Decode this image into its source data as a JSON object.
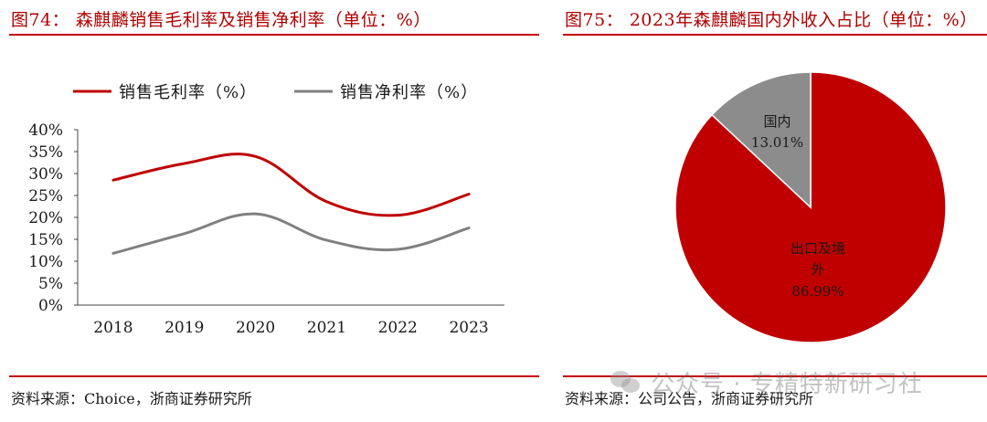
{
  "left": {
    "title": "图74：   森麒麟销售毛利率及销售净利率（单位：%）",
    "source": "资料来源：Choice，浙商证券研究所",
    "chart_data": {
      "type": "line",
      "title": "",
      "xlabel": "",
      "ylabel": "",
      "categories": [
        "2018",
        "2019",
        "2020",
        "2021",
        "2022",
        "2023"
      ],
      "series": [
        {
          "name": "销售毛利率（%）",
          "color": "#c00000",
          "values": [
            28.5,
            32.3,
            33.9,
            23.6,
            20.5,
            25.3
          ]
        },
        {
          "name": "销售净利率（%）",
          "color": "#808080",
          "values": [
            11.8,
            16.3,
            20.8,
            14.8,
            12.7,
            17.6
          ]
        }
      ],
      "ylim": [
        0,
        40
      ],
      "yticks": [
        "0%",
        "5%",
        "10%",
        "15%",
        "20%",
        "25%",
        "30%",
        "35%",
        "40%"
      ],
      "legend_position": "top",
      "grid": false
    }
  },
  "right": {
    "title": "图75：   2023年森麒麟国内外收入占比（单位：%）",
    "source": "资料来源：公司公告，浙商证券研究所",
    "chart_data": {
      "type": "pie",
      "title": "",
      "slices": [
        {
          "label": "国内",
          "value": 13.01,
          "pct_label": "13.01%",
          "color": "#8c8c8c"
        },
        {
          "label": "出口及境外",
          "label_line1": "出口及境",
          "label_line2": "外",
          "value": 86.99,
          "pct_label": "86.99%",
          "color": "#c00000"
        }
      ]
    }
  },
  "watermark": {
    "text": "公众号 · 专精特新研习社",
    "icon": "wechat-icon"
  }
}
